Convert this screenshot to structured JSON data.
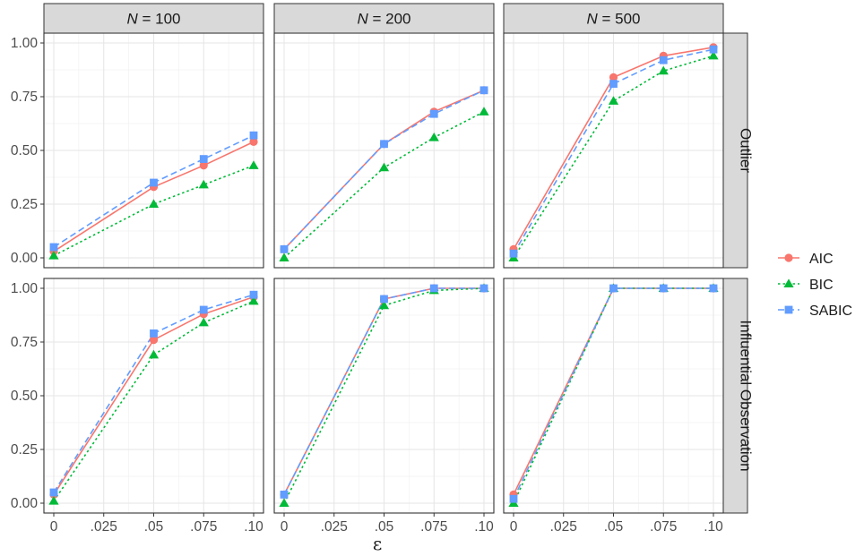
{
  "chart_data": {
    "type": "line",
    "facets": {
      "columns": [
        {
          "prefix": "N",
          "value": "= 100"
        },
        {
          "prefix": "N",
          "value": "= 200"
        },
        {
          "prefix": "N",
          "value": "= 500"
        }
      ],
      "rows": [
        "Outlier",
        "Influential Observation"
      ]
    },
    "x": [
      0,
      0.025,
      0.05,
      0.075,
      0.1
    ],
    "x_tick_labels": [
      "0",
      ".025",
      ".05",
      ".075",
      ".10"
    ],
    "xlabel": "ε",
    "ylim": [
      0,
      1
    ],
    "y_ticks": [
      0,
      0.25,
      0.5,
      0.75,
      1.0
    ],
    "y_tick_labels": [
      "0.00",
      "0.25",
      "0.50",
      "0.75",
      "1.00"
    ],
    "grid": true,
    "legend_position": "right",
    "series": [
      {
        "name": "AIC",
        "color": "#F8766D",
        "marker": "circle",
        "linestyle": "solid"
      },
      {
        "name": "BIC",
        "color": "#00BA38",
        "marker": "triangle",
        "linestyle": "dotted"
      },
      {
        "name": "SABIC",
        "color": "#619CFF",
        "marker": "square",
        "linestyle": "dashed"
      }
    ],
    "panels": [
      {
        "row": 0,
        "col": 0,
        "x": [
          0,
          0.05,
          0.075,
          0.1
        ],
        "values": {
          "AIC": [
            0.03,
            0.33,
            0.43,
            0.54
          ],
          "BIC": [
            0.01,
            0.25,
            0.34,
            0.43
          ],
          "SABIC": [
            0.05,
            0.35,
            0.46,
            0.57
          ]
        }
      },
      {
        "row": 0,
        "col": 1,
        "x": [
          0,
          0.05,
          0.075,
          0.1
        ],
        "values": {
          "AIC": [
            0.04,
            0.53,
            0.68,
            0.78
          ],
          "BIC": [
            0.0,
            0.42,
            0.56,
            0.68
          ],
          "SABIC": [
            0.04,
            0.53,
            0.67,
            0.78
          ]
        }
      },
      {
        "row": 0,
        "col": 2,
        "x": [
          0,
          0.05,
          0.075,
          0.1
        ],
        "values": {
          "AIC": [
            0.04,
            0.84,
            0.94,
            0.98
          ],
          "BIC": [
            0.0,
            0.73,
            0.87,
            0.94
          ],
          "SABIC": [
            0.02,
            0.81,
            0.92,
            0.97
          ]
        }
      },
      {
        "row": 1,
        "col": 0,
        "x": [
          0,
          0.05,
          0.075,
          0.1
        ],
        "values": {
          "AIC": [
            0.04,
            0.76,
            0.88,
            0.96
          ],
          "BIC": [
            0.01,
            0.69,
            0.84,
            0.94
          ],
          "SABIC": [
            0.05,
            0.79,
            0.9,
            0.97
          ]
        }
      },
      {
        "row": 1,
        "col": 1,
        "x": [
          0,
          0.05,
          0.075,
          0.1
        ],
        "values": {
          "AIC": [
            0.04,
            0.95,
            1.0,
            1.0
          ],
          "BIC": [
            0.0,
            0.92,
            0.99,
            1.0
          ],
          "SABIC": [
            0.04,
            0.95,
            1.0,
            1.0
          ]
        }
      },
      {
        "row": 1,
        "col": 2,
        "x": [
          0,
          0.05,
          0.075,
          0.1
        ],
        "values": {
          "AIC": [
            0.04,
            1.0,
            1.0,
            1.0
          ],
          "BIC": [
            0.0,
            1.0,
            1.0,
            1.0
          ],
          "SABIC": [
            0.02,
            1.0,
            1.0,
            1.0
          ]
        }
      }
    ]
  }
}
